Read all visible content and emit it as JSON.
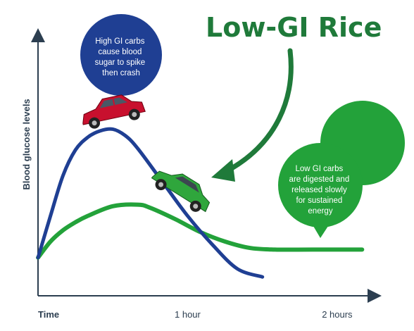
{
  "title": "Low-GI Rice",
  "colors": {
    "high_gi": "#1f3f93",
    "low_gi": "#23a23a",
    "title": "#1f7a3a",
    "axis": "#2c3e50"
  },
  "icons": {
    "high_gi_marker": "red-car-icon",
    "low_gi_marker": "green-car-icon",
    "annotation_pointer": "curved-arrow-icon"
  },
  "chart_data": {
    "type": "line",
    "xlabel": "Time",
    "ylabel": "Blood glucose levels",
    "x_ticks": [
      {
        "value": 0,
        "label": "Time"
      },
      {
        "value": 60,
        "label": "1 hour"
      },
      {
        "value": 120,
        "label": "2 hours"
      }
    ],
    "xlim": [
      0,
      135
    ],
    "ylim": [
      0,
      100
    ],
    "grid": false,
    "series": [
      {
        "key": "high_gi",
        "x": [
          0,
          5,
          10,
          15,
          20,
          25,
          30,
          35,
          40,
          50,
          60,
          70,
          80,
          90
        ],
        "y": [
          15,
          41,
          66,
          82,
          90,
          94,
          95,
          91,
          83,
          62,
          41,
          23,
          8,
          3
        ]
      },
      {
        "key": "low_gi",
        "x": [
          0,
          5,
          10,
          15,
          20,
          30,
          40,
          45,
          55,
          65,
          75,
          85,
          95,
          110,
          130
        ],
        "y": [
          15,
          25,
          32,
          37,
          41,
          47,
          48,
          46,
          39,
          31,
          25,
          21,
          20,
          20,
          20
        ]
      }
    ],
    "annotations": [
      {
        "key": "high_gi",
        "text": [
          "High GI carbs",
          "cause blood",
          "sugar to spike",
          "then crash"
        ]
      },
      {
        "key": "low_gi",
        "text": [
          "Low GI carbs",
          "are digested and",
          "released slowly",
          "for sustained",
          "energy"
        ]
      }
    ]
  }
}
